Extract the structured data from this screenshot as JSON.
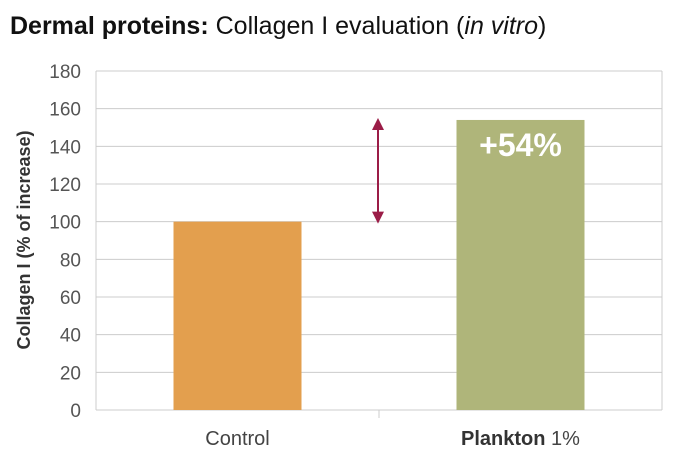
{
  "chart_data": {
    "type": "bar",
    "title": {
      "bold": "Dermal proteins:",
      "regular": " Collagen I evaluation (",
      "italic": "in vitro",
      "end": ")"
    },
    "ylabel": "Collagen I (% of increase)",
    "xlabel": "",
    "ylim": [
      0,
      180
    ],
    "yticks": [
      "0",
      "20",
      "40",
      "60",
      "80",
      "100",
      "120",
      "140",
      "160",
      "180"
    ],
    "grid": true,
    "categories": [
      {
        "bold": "",
        "regular": "Control"
      },
      {
        "bold": "Plankton",
        "regular": " 1%"
      }
    ],
    "values": [
      100,
      154
    ],
    "colors": [
      "#e39f4e",
      "#afb57a"
    ],
    "annotation": "+54%",
    "arrow": {
      "from": 100,
      "to": 154,
      "color": "#9b1d47"
    }
  }
}
